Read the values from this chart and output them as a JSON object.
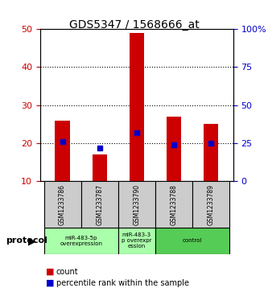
{
  "title": "GDS5347 / 1568666_at",
  "samples": [
    "GSM1233786",
    "GSM1233787",
    "GSM1233790",
    "GSM1233788",
    "GSM1233789"
  ],
  "count_values": [
    26,
    17,
    49,
    27,
    25
  ],
  "percentile_values": [
    26,
    22,
    32,
    24,
    25
  ],
  "ylim_left": [
    10,
    50
  ],
  "ylim_right": [
    0,
    100
  ],
  "yticks_left": [
    10,
    20,
    30,
    40,
    50
  ],
  "yticks_right": [
    0,
    25,
    50,
    75,
    100
  ],
  "ytick_labels_right": [
    "0",
    "25",
    "50",
    "75",
    "100%"
  ],
  "bar_color": "#cc0000",
  "percentile_color": "#0000cc",
  "groups": [
    {
      "label": "miR-483-5p\noverexpression",
      "samples": [
        0,
        1
      ],
      "color": "#aaffaa"
    },
    {
      "label": "miR-483-3\np overexpr\nession",
      "samples": [
        2
      ],
      "color": "#aaffaa"
    },
    {
      "label": "control",
      "samples": [
        3,
        4
      ],
      "color": "#00cc44"
    }
  ],
  "protocol_label": "protocol",
  "legend_count_label": "count",
  "legend_percentile_label": "percentile rank within the sample",
  "background_color": "#ffffff",
  "plot_bg_color": "#ffffff",
  "label_color_red": "#cc0000",
  "label_color_blue": "#0000cc",
  "bar_width": 0.4,
  "gridline_color": "#000000",
  "gridline_style": "dotted"
}
